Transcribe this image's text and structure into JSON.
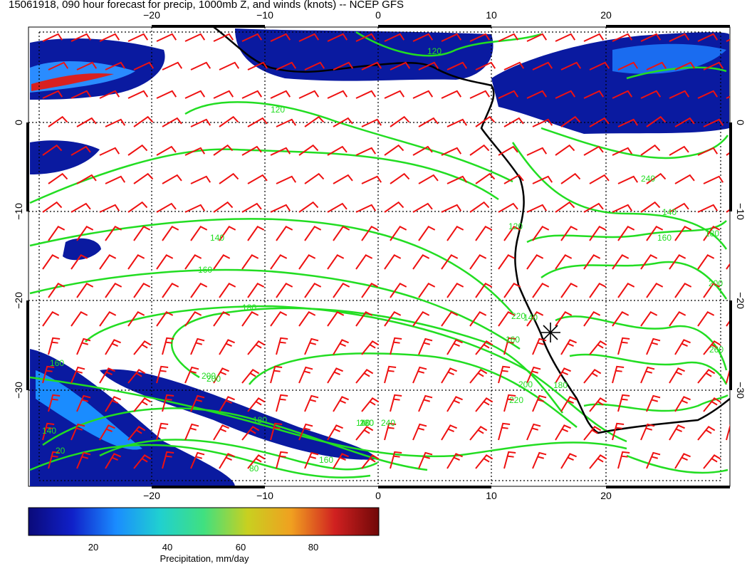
{
  "title": "15061918, 090 hour forecast for precip, 1000mb Z, and winds (knots) -- NCEP GFS",
  "axes": {
    "lon_ticks": [
      "−20",
      "−10",
      "0",
      "10",
      "20"
    ],
    "lat_ticks": [
      "0",
      "−10",
      "−20",
      "−30"
    ]
  },
  "colorbar": {
    "ticks": [
      "20",
      "40",
      "60",
      "80"
    ],
    "label": "Precipitation, mm/day",
    "colors": [
      "#0a0a7a",
      "#1020c8",
      "#1a8cff",
      "#20d0d0",
      "#40e080",
      "#c8d020",
      "#f0a020",
      "#d02020",
      "#700808"
    ]
  },
  "contour_labels": [
    "120",
    "120",
    "140",
    "160",
    "180",
    "200",
    "220",
    "240",
    "160",
    "140",
    "160",
    "180",
    "200",
    "220",
    "240",
    "120",
    "140",
    "160",
    "180",
    "200",
    "260",
    "140",
    "160",
    "180",
    "200",
    "220",
    "160",
    "140",
    "20",
    "80"
  ],
  "colors": {
    "contour": "#22dd22",
    "barb": "#ee1111",
    "coast": "#000000",
    "grid": "#000000"
  },
  "marker": {
    "icon": "asterisk-marker-icon"
  }
}
